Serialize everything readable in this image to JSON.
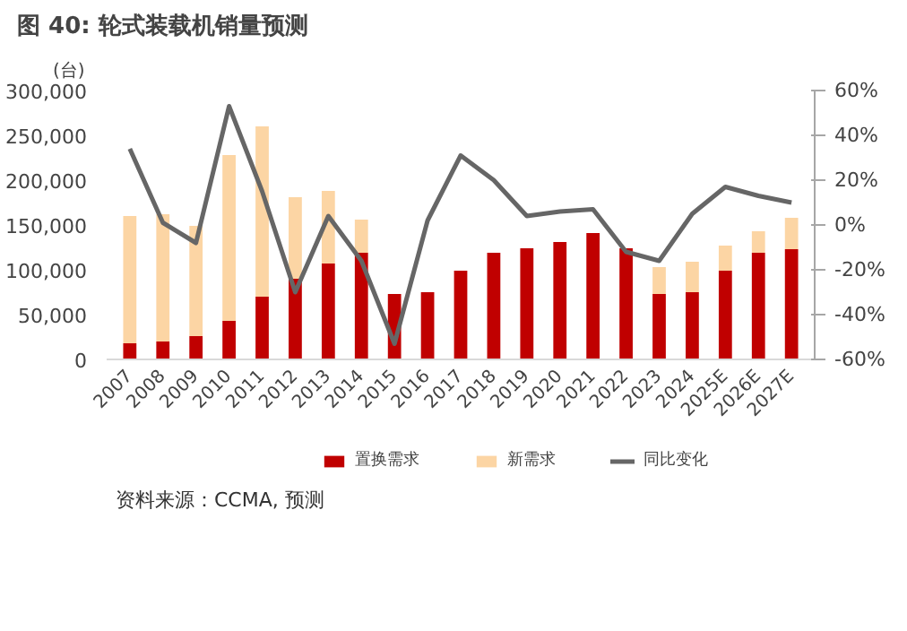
{
  "chart_data": {
    "type": "bar",
    "title": "图 40: 轮式装载机销量预测",
    "ylabel": "(台)",
    "annotations": [
      "资料来源：CCMA, 预测"
    ],
    "categories": [
      "2007",
      "2008",
      "2009",
      "2010",
      "2011",
      "2012",
      "2013",
      "2014",
      "2015",
      "2016",
      "2017",
      "2018",
      "2019",
      "2020",
      "2021",
      "2022",
      "2023",
      "2024",
      "2025E",
      "2026E",
      "2027E"
    ],
    "stacked": true,
    "series": [
      {
        "name": "置换需求",
        "color": "#c00000",
        "values": [
          18000,
          20000,
          26000,
          43000,
          70000,
          90000,
          107000,
          119000,
          73000,
          75000,
          99000,
          119000,
          124000,
          131000,
          141000,
          124000,
          73000,
          75000,
          99000,
          119000,
          123000
        ]
      },
      {
        "name": "新需求",
        "color": "#fcd5a4",
        "values": [
          142000,
          142000,
          123000,
          185000,
          190000,
          91000,
          81000,
          37000,
          0,
          0,
          0,
          0,
          0,
          0,
          0,
          0,
          30000,
          34000,
          28000,
          24000,
          35000
        ]
      },
      {
        "name": "同比变化",
        "color": "#666666",
        "type": "line",
        "axis": "y2",
        "values": [
          34,
          1,
          -8,
          53,
          15,
          -30,
          4,
          -16,
          -53,
          2,
          31,
          20,
          4,
          6,
          7,
          -12,
          -16,
          5,
          17,
          13,
          10
        ]
      }
    ],
    "ylim": [
      0,
      300000
    ],
    "yticks": [
      {
        "value": 0,
        "label": "0"
      },
      {
        "value": 50000,
        "label": "50,000"
      },
      {
        "value": 100000,
        "label": "100,000"
      },
      {
        "value": 150000,
        "label": "150,000"
      },
      {
        "value": 200000,
        "label": "200,000"
      },
      {
        "value": 250000,
        "label": "250,000"
      },
      {
        "value": 300000,
        "label": "300,000"
      }
    ],
    "y2lim": [
      -60,
      60
    ],
    "y2ticks": [
      {
        "value": -60,
        "label": "-60%"
      },
      {
        "value": -40,
        "label": "-40%"
      },
      {
        "value": -20,
        "label": "-20%"
      },
      {
        "value": 0,
        "label": "0%"
      },
      {
        "value": 20,
        "label": "20%"
      },
      {
        "value": 40,
        "label": "40%"
      },
      {
        "value": 60,
        "label": "60%"
      }
    ],
    "legend": "bottom",
    "grid": false
  }
}
